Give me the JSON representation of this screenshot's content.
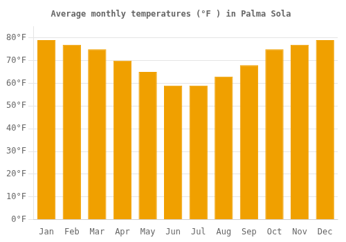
{
  "chart_data": {
    "type": "bar",
    "title": "Average monthly temperatures (°F ) in Palma Sola",
    "categories": [
      "Jan",
      "Feb",
      "Mar",
      "Apr",
      "May",
      "Jun",
      "Jul",
      "Aug",
      "Sep",
      "Oct",
      "Nov",
      "Dec"
    ],
    "values": [
      79,
      77,
      75,
      70,
      65,
      59,
      59,
      63,
      68,
      75,
      77,
      79
    ],
    "color": "#F0A000",
    "ylim": [
      0,
      85
    ],
    "yticks": [
      {
        "value": 0,
        "label": "0°F"
      },
      {
        "value": 10,
        "label": "10°F"
      },
      {
        "value": 20,
        "label": "20°F"
      },
      {
        "value": 30,
        "label": "30°F"
      },
      {
        "value": 40,
        "label": "40°F"
      },
      {
        "value": 50,
        "label": "50°F"
      },
      {
        "value": 60,
        "label": "60°F"
      },
      {
        "value": 70,
        "label": "70°F"
      },
      {
        "value": 80,
        "label": "80°F"
      }
    ],
    "grid": true
  }
}
